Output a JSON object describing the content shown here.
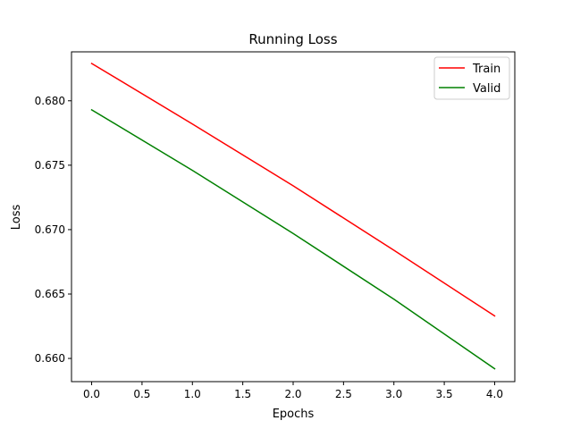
{
  "chart_data": {
    "type": "line",
    "title": "Running Loss",
    "xlabel": "Epochs",
    "ylabel": "Loss",
    "xlim": [
      -0.2,
      4.2
    ],
    "ylim": [
      0.6582,
      0.6838
    ],
    "x_ticks": [
      "0.0",
      "0.5",
      "1.0",
      "1.5",
      "2.0",
      "2.5",
      "3.0",
      "3.5",
      "4.0"
    ],
    "y_ticks": [
      "0.660",
      "0.665",
      "0.670",
      "0.675",
      "0.680"
    ],
    "grid": false,
    "legend_position": "top-right",
    "series": [
      {
        "name": "Train",
        "color": "#ff0000",
        "x": [
          0,
          1,
          2,
          3,
          4
        ],
        "y": [
          0.6829,
          0.6782,
          0.6734,
          0.6684,
          0.6633
        ]
      },
      {
        "name": "Valid",
        "color": "#008000",
        "x": [
          0,
          1,
          2,
          3,
          4
        ],
        "y": [
          0.6793,
          0.6746,
          0.6697,
          0.6646,
          0.6592
        ]
      }
    ]
  }
}
